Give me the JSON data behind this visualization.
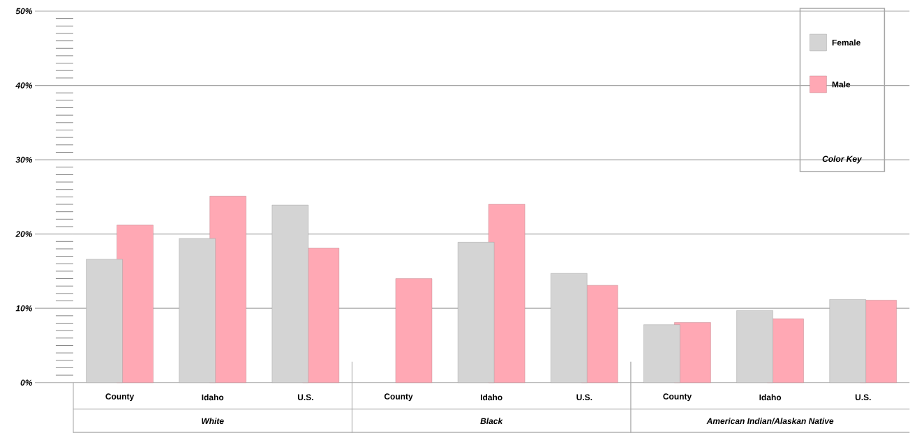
{
  "chart_data": {
    "type": "bar",
    "categories": [
      "County",
      "Idaho",
      "U.S.",
      "County",
      "Idaho",
      "U.S.",
      "County",
      "Idaho",
      "U.S."
    ],
    "series": [
      {
        "name": "Female",
        "color": "#d4d4d4",
        "values": [
          16.6,
          19.4,
          23.9,
          null,
          18.9,
          14.7,
          7.8,
          9.7,
          11.2
        ]
      },
      {
        "name": "Male",
        "color": "#ffa8b4",
        "values": [
          21.2,
          25.1,
          18.1,
          14.0,
          24.0,
          13.1,
          8.1,
          8.6,
          11.1
        ]
      }
    ],
    "ylim": [
      0,
      50
    ],
    "yticks": [
      {
        "value": 0,
        "label": "0%"
      },
      {
        "value": 10,
        "label": "10%"
      },
      {
        "value": 20,
        "label": "20%"
      },
      {
        "value": 30,
        "label": "30%"
      },
      {
        "value": 40,
        "label": "40%"
      },
      {
        "value": 50,
        "label": "50%"
      }
    ],
    "grid": "y",
    "legend": "top right",
    "legend_title": "Color Key",
    "annotations": [
      "White",
      "Black",
      "American Indian/Alaskan Native"
    ]
  }
}
